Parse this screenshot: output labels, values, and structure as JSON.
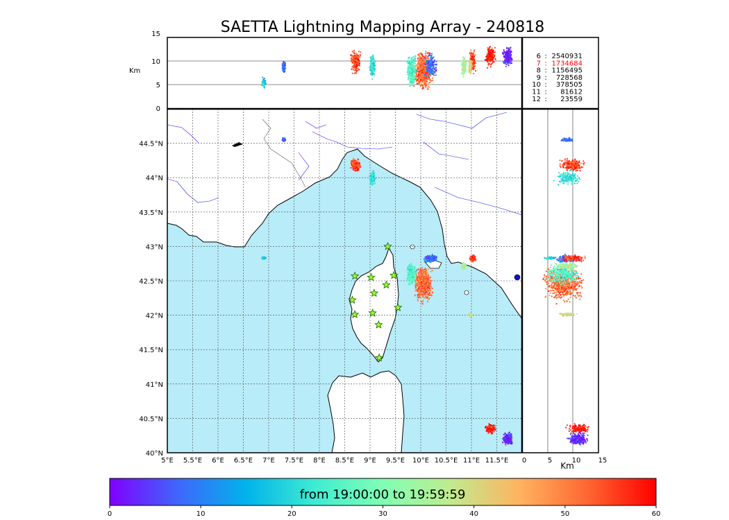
{
  "title": "SAETTA Lightning Mapping Array - 240818",
  "top_panel": {
    "ylabel": "Km",
    "yticks": [
      "0",
      "5",
      "10",
      "15"
    ]
  },
  "side_panel": {
    "xlabel": "Km",
    "xticks": [
      "0",
      "5",
      "10",
      "15"
    ]
  },
  "stats": [
    {
      "key": "6",
      "value": "2540931",
      "color": "#000000"
    },
    {
      "key": "7",
      "value": "1734684",
      "color": "#ff0000"
    },
    {
      "key": "8",
      "value": "1156495",
      "color": "#000000"
    },
    {
      "key": "9",
      "value": "728568",
      "color": "#000000"
    },
    {
      "key": "10",
      "value": "378505",
      "color": "#000000"
    },
    {
      "key": "11",
      "value": "81612",
      "color": "#000000"
    },
    {
      "key": "12",
      "value": "23559",
      "color": "#000000"
    }
  ],
  "map": {
    "lon_ticks": [
      "5°E",
      "5.5°E",
      "6°E",
      "6.5°E",
      "7°E",
      "7.5°E",
      "8°E",
      "8.5°E",
      "9°E",
      "9.5°E",
      "10°E",
      "10.5°E",
      "11°E",
      "11.5°E"
    ],
    "lat_ticks": [
      "40°N",
      "40.5°N",
      "41°N",
      "41.5°N",
      "42°N",
      "42.5°N",
      "43°N",
      "43.5°N",
      "44°N",
      "44.5°N"
    ],
    "sea_color": "#b8ecf8",
    "stations": [
      [
        9.35,
        43.0
      ],
      [
        8.7,
        42.57
      ],
      [
        9.02,
        42.55
      ],
      [
        9.47,
        42.58
      ],
      [
        9.32,
        42.44
      ],
      [
        9.08,
        42.32
      ],
      [
        8.65,
        42.22
      ],
      [
        9.55,
        42.11
      ],
      [
        9.05,
        42.03
      ],
      [
        8.7,
        42.01
      ],
      [
        9.17,
        41.86
      ],
      [
        9.18,
        41.38
      ]
    ]
  },
  "colorbar": {
    "label": "from 19:00:00 to 19:59:59",
    "ticks": [
      "0",
      "10",
      "20",
      "30",
      "40",
      "50",
      "60"
    ],
    "colors": [
      "#8000ff",
      "#3f66fc",
      "#01b3eb",
      "#3febd2",
      "#80ffb4",
      "#c0eb8d",
      "#ffb360",
      "#ff6631",
      "#ff0000"
    ]
  },
  "chart_data": {
    "type": "scatter",
    "title": "SAETTA Lightning Mapping Array - 240818",
    "map_xlim": [
      5,
      12
    ],
    "map_ylim": [
      40,
      45
    ],
    "alt_range_km": [
      0,
      15
    ],
    "time_range_minutes": [
      0,
      60
    ],
    "clusters": [
      {
        "lon": 10.05,
        "lat": 42.45,
        "lon_spread": 0.22,
        "lat_spread": 0.3,
        "alt_km": 8,
        "alt_spread": 4.5,
        "time_min": 52
      },
      {
        "lon": 9.82,
        "lat": 42.6,
        "lon_spread": 0.12,
        "lat_spread": 0.2,
        "alt_km": 8,
        "alt_spread": 4,
        "time_min": 25
      },
      {
        "lon": 10.2,
        "lat": 42.82,
        "lon_spread": 0.15,
        "lat_spread": 0.07,
        "alt_km": 9,
        "alt_spread": 3,
        "time_min": 8
      },
      {
        "lon": 8.72,
        "lat": 44.18,
        "lon_spread": 0.12,
        "lat_spread": 0.12,
        "alt_km": 10,
        "alt_spread": 3,
        "time_min": 55
      },
      {
        "lon": 9.05,
        "lat": 44.0,
        "lon_spread": 0.07,
        "lat_spread": 0.12,
        "alt_km": 9,
        "alt_spread": 3,
        "time_min": 20
      },
      {
        "lon": 11.02,
        "lat": 42.83,
        "lon_spread": 0.08,
        "lat_spread": 0.06,
        "alt_km": 10,
        "alt_spread": 3,
        "time_min": 55
      },
      {
        "lon": 10.85,
        "lat": 42.72,
        "lon_spread": 0.06,
        "lat_spread": 0.06,
        "alt_km": 9,
        "alt_spread": 3,
        "time_min": 35
      },
      {
        "lon": 11.38,
        "lat": 40.35,
        "lon_spread": 0.12,
        "lat_spread": 0.08,
        "alt_km": 11,
        "alt_spread": 2.5,
        "time_min": 58
      },
      {
        "lon": 11.72,
        "lat": 40.2,
        "lon_spread": 0.12,
        "lat_spread": 0.12,
        "alt_km": 11,
        "alt_spread": 2.5,
        "time_min": 3
      },
      {
        "lon": 7.3,
        "lat": 44.55,
        "lon_spread": 0.04,
        "lat_spread": 0.03,
        "alt_km": 9,
        "alt_spread": 1.5,
        "time_min": 8
      },
      {
        "lon": 6.9,
        "lat": 42.83,
        "lon_spread": 0.05,
        "lat_spread": 0.02,
        "alt_km": 5.5,
        "alt_spread": 1.2,
        "time_min": 17
      },
      {
        "lon": 10.98,
        "lat": 42.01,
        "lon_spread": 0.04,
        "lat_spread": 0.03,
        "alt_km": 9,
        "alt_spread": 2,
        "time_min": 40
      }
    ]
  }
}
